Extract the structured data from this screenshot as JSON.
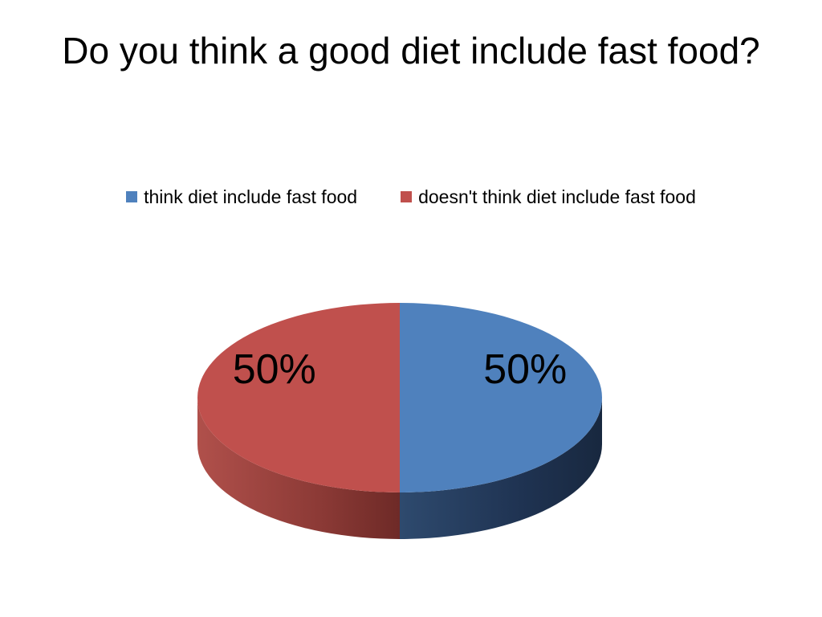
{
  "chart_data": {
    "type": "pie",
    "style": "3d",
    "title": "Do you think a good diet include fast food?",
    "legend_position": "top",
    "categories": [
      "think diet include fast food",
      "doesn't think diet include fast food"
    ],
    "values": [
      50,
      50
    ],
    "data_labels": [
      "50%",
      "50%"
    ],
    "colors": [
      "#4F81BD",
      "#C0504D"
    ]
  }
}
